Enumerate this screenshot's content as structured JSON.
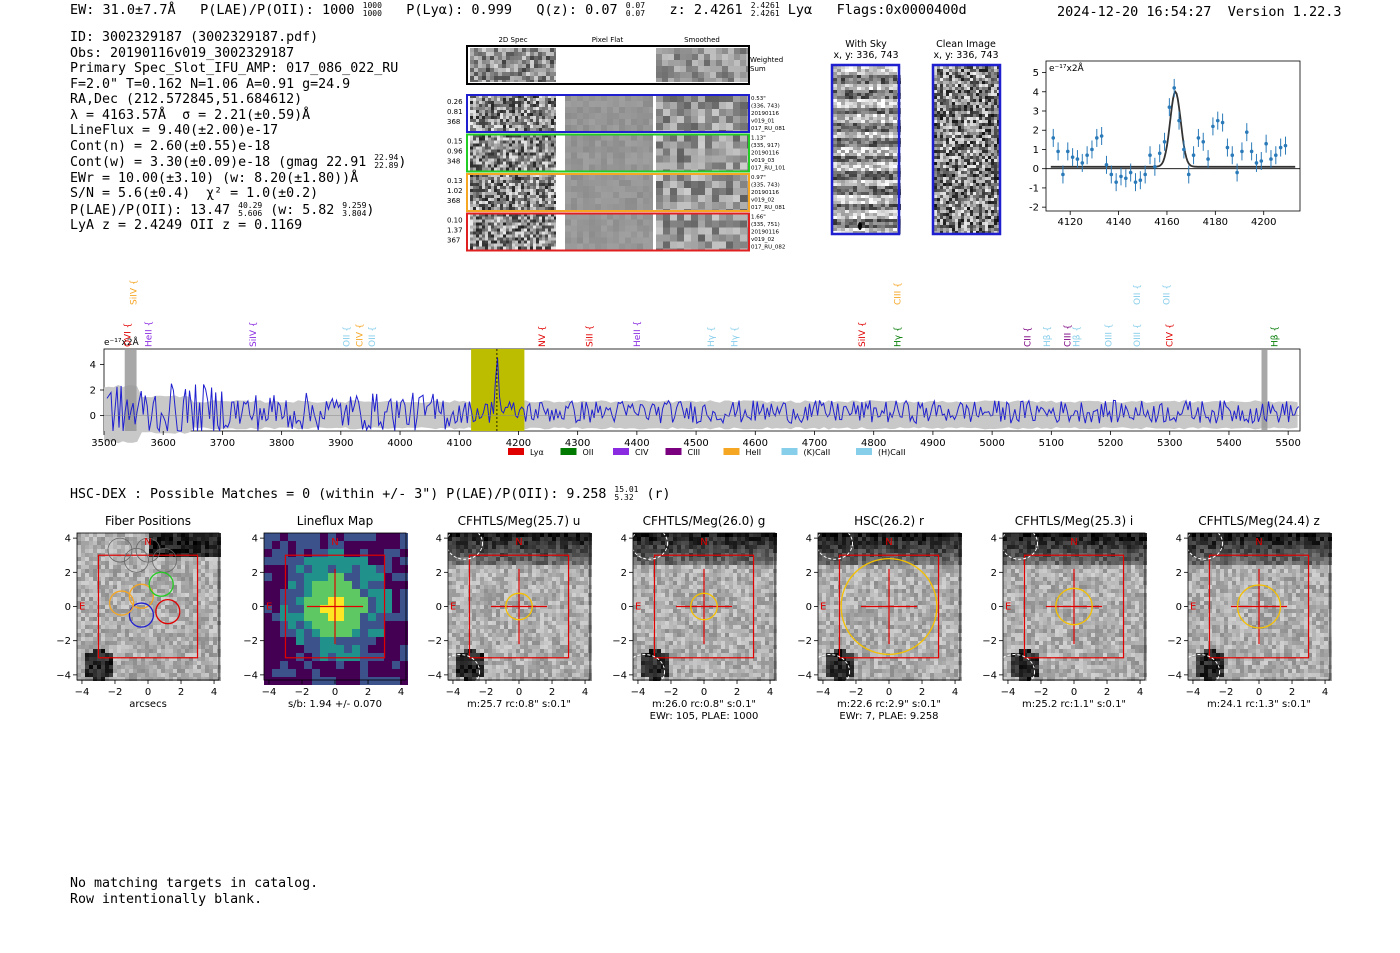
{
  "header": {
    "ew": "EW: 31.0±7.7Å",
    "plae": "P(LAE)/P(OII): 1000",
    "plae_hi": "1000",
    "plae_lo": "1000",
    "plya": "P(Lyα): 0.999",
    "qz": "Q(z): 0.07",
    "qz_hi": "0.07",
    "qz_lo": "0.07",
    "z": "z: 2.4261",
    "z_hi": "2.4261",
    "z_lo": "2.4261",
    "line": "Lyα",
    "flags": "Flags:0x0000400d",
    "timestamp": "2024-12-20 16:54:27",
    "version": "Version 1.22.3"
  },
  "info": {
    "id": "ID: 3002329187 (3002329187.pdf)",
    "obs": "Obs: 20190116v019_3002329187",
    "primary": "Primary Spec_Slot_IFU_AMP: 017_086_022_RU",
    "fiber": "F=2.0\"  T=0.162  N=1.06  A=0.91  g=24.9",
    "radec": "RA,Dec (212.572845,51.684612)",
    "lambda": "λ = 4163.57Å  σ = 2.21(±0.59)Å  χ² = 1.0(±0.2)",
    "lambda_a": "λ = 4163.57Å",
    "lambda_b": "σ = 2.21(±0.59)Å",
    "lineflux": "LineFlux = 9.40(±2.00)e-17",
    "contn": "Cont(n) = 2.60(±0.55)e-18",
    "contw": "Cont(w) = 3.30(±0.09)e-18 (gmag 22.91",
    "contw_hi": "22.94",
    "contw_lo": "22.89",
    "ewr": "EWr = 10.00(±3.10) (w: 8.20(±1.80))Å",
    "sn": "S/N = 5.6(±0.4)",
    "chi2": "χ² = 1.0(±0.2)",
    "plae": "P(LAE)/P(OII): 13.47",
    "plae_hi": "40.29",
    "plae_lo": "5.606",
    "plae_w": "(w: 5.82",
    "plae_w_hi": "9.259",
    "plae_w_lo": "3.804",
    "lya_z": "LyA z = 2.4249   OII z = 0.1169"
  },
  "spec2d": {
    "col_titles": [
      "2D Spec",
      "Pixel Flat",
      "Smoothed"
    ],
    "weighted_sum": [
      "Weighted",
      "Sum"
    ],
    "rows": [
      {
        "left": [
          "0.26",
          "0.81",
          "368"
        ],
        "right": [
          "0.53\"",
          "(336, 743)",
          "20190116",
          "v019_01",
          "017_RU_081"
        ],
        "color": "#1f1fd0"
      },
      {
        "left": [
          "0.15",
          "0.96",
          "348"
        ],
        "right": [
          "1.13\"",
          "(335, 917)",
          "20190116",
          "v019_03",
          "017_RU_101"
        ],
        "color": "#22cc22"
      },
      {
        "left": [
          "0.13",
          "1.02",
          "368"
        ],
        "right": [
          "0.97\"",
          "(335, 743)",
          "20190116",
          "v019_02",
          "017_RU_081"
        ],
        "color": "#f5a623"
      },
      {
        "left": [
          "0.10",
          "1.37",
          "367"
        ],
        "right": [
          "1.66\"",
          "(335, 751)",
          "20190116",
          "v019_02",
          "017_RU_082"
        ],
        "color": "#e02020"
      }
    ]
  },
  "cutouts": {
    "with_sky": [
      "With Sky",
      "x, y: 336, 743"
    ],
    "clean": [
      "Clean Image",
      "x, y: 336, 743"
    ]
  },
  "chart_data": [
    {
      "type": "line",
      "name": "zoom-line-fit",
      "ylabel": "e⁻¹⁷x2Å",
      "xlim": [
        4110,
        4215
      ],
      "ylim": [
        -2.2,
        5.6
      ],
      "xticks": [
        4120,
        4140,
        4160,
        4180,
        4200
      ],
      "yticks": [
        -2,
        -1,
        0,
        1,
        2,
        3,
        4,
        5
      ],
      "points": [
        [
          4113,
          1.6
        ],
        [
          4115,
          0.9
        ],
        [
          4117,
          -0.3
        ],
        [
          4119,
          0.9
        ],
        [
          4121,
          0.6
        ],
        [
          4123,
          0.5
        ],
        [
          4125,
          0.3
        ],
        [
          4127,
          0.7
        ],
        [
          4129,
          1.0
        ],
        [
          4131,
          1.6
        ],
        [
          4133,
          1.7
        ],
        [
          4135,
          0.2
        ],
        [
          4137,
          -0.3
        ],
        [
          4139,
          -0.7
        ],
        [
          4141,
          -0.4
        ],
        [
          4143,
          -0.5
        ],
        [
          4145,
          -0.2
        ],
        [
          4147,
          -0.7
        ],
        [
          4149,
          -0.6
        ],
        [
          4151,
          -0.3
        ],
        [
          4153,
          0.7
        ],
        [
          4155,
          0.1
        ],
        [
          4157,
          0.8
        ],
        [
          4159,
          1.4
        ],
        [
          4161,
          3.2
        ],
        [
          4163,
          4.2
        ],
        [
          4165,
          2.5
        ],
        [
          4167,
          1.0
        ],
        [
          4169,
          -0.3
        ],
        [
          4171,
          0.7
        ],
        [
          4173,
          1.6
        ],
        [
          4175,
          1.4
        ],
        [
          4177,
          0.5
        ],
        [
          4179,
          2.2
        ],
        [
          4181,
          2.5
        ],
        [
          4183,
          2.4
        ],
        [
          4185,
          1.1
        ],
        [
          4187,
          0.7
        ],
        [
          4189,
          -0.2
        ],
        [
          4191,
          0.9
        ],
        [
          4193,
          1.9
        ],
        [
          4195,
          0.9
        ],
        [
          4197,
          0.3
        ],
        [
          4199,
          0.4
        ],
        [
          4201,
          1.3
        ],
        [
          4203,
          0.5
        ],
        [
          4205,
          0.7
        ],
        [
          4207,
          1.1
        ],
        [
          4209,
          1.2
        ]
      ],
      "fit": {
        "amplitude": 3.9,
        "center": 4163.5,
        "sigma": 2.2,
        "offset": 0.1
      }
    },
    {
      "type": "line",
      "name": "full-spectrum",
      "ylabel": "e⁻¹⁷x2Å",
      "xlim": [
        3500,
        5520
      ],
      "ylim": [
        -1.2,
        5.2
      ],
      "xticks": [
        3500,
        3600,
        3700,
        3800,
        3900,
        4000,
        4100,
        4200,
        4300,
        4400,
        4500,
        4600,
        4700,
        4800,
        4900,
        5000,
        5100,
        5200,
        5300,
        5400,
        5500
      ],
      "yticks": [
        0,
        2,
        4
      ],
      "highlight": [
        4120,
        4210
      ],
      "line_center": 4163.6,
      "masked": [
        [
          3535,
          3555
        ],
        [
          5455,
          5465
        ]
      ],
      "legend": [
        {
          "label": "Lyα",
          "color": "#e00000"
        },
        {
          "label": "OII",
          "color": "#007a00"
        },
        {
          "label": "CIV",
          "color": "#8a2be2"
        },
        {
          "label": "CIII",
          "color": "#7a0080"
        },
        {
          "label": "HeII",
          "color": "#f5a623"
        },
        {
          "label": "(K)CaII",
          "color": "#87ceeb"
        },
        {
          "label": "(H)CaII",
          "color": "#87ceeb"
        }
      ],
      "line_labels": [
        {
          "label": "SiIV",
          "x": 3555,
          "row": 0,
          "color": "#f5a623"
        },
        {
          "label": "OVI",
          "x": 3545,
          "row": 1,
          "color": "#e00000"
        },
        {
          "label": "HeII",
          "x": 3580,
          "row": 1,
          "color": "#8a2be2"
        },
        {
          "label": "SiIV",
          "x": 3757,
          "row": 1,
          "color": "#8a2be2"
        },
        {
          "label": "OII",
          "x": 3915,
          "row": 1,
          "color": "#87ceeb"
        },
        {
          "label": "CIV",
          "x": 3937,
          "row": 1,
          "color": "#f5a623"
        },
        {
          "label": "OII",
          "x": 3958,
          "row": 1,
          "color": "#87ceeb"
        },
        {
          "label": "NV",
          "x": 4245,
          "row": 1,
          "color": "#e00000"
        },
        {
          "label": "SiII",
          "x": 4325,
          "row": 1,
          "color": "#e00000"
        },
        {
          "label": "HeII",
          "x": 4405,
          "row": 1,
          "color": "#8a2be2"
        },
        {
          "label": "Hγ",
          "x": 4530,
          "row": 1,
          "color": "#87ceeb"
        },
        {
          "label": "Hγ",
          "x": 4570,
          "row": 1,
          "color": "#87ceeb"
        },
        {
          "label": "SiIV",
          "x": 4785,
          "row": 1,
          "color": "#e00000"
        },
        {
          "label": "CIII",
          "x": 4845,
          "row": 0,
          "color": "#f5a623"
        },
        {
          "label": "Hγ",
          "x": 4845,
          "row": 1,
          "color": "#007a00"
        },
        {
          "label": "CII",
          "x": 5065,
          "row": 1,
          "color": "#7a0080"
        },
        {
          "label": "Hβ",
          "x": 5098,
          "row": 1,
          "color": "#87ceeb"
        },
        {
          "label": "CIII",
          "x": 5132,
          "row": 1,
          "color": "#7a0080"
        },
        {
          "label": "Hβ",
          "x": 5148,
          "row": 1,
          "color": "#87ceeb"
        },
        {
          "label": "OIII",
          "x": 5202,
          "row": 1,
          "color": "#87ceeb"
        },
        {
          "label": "OII",
          "x": 5250,
          "row": 0,
          "color": "#87ceeb"
        },
        {
          "label": "OIII",
          "x": 5250,
          "row": 1,
          "color": "#87ceeb"
        },
        {
          "label": "OII",
          "x": 5300,
          "row": 0,
          "color": "#87ceeb"
        },
        {
          "label": "CIV",
          "x": 5305,
          "row": 1,
          "color": "#e00000"
        },
        {
          "label": "Hβ",
          "x": 5482,
          "row": 1,
          "color": "#007a00"
        }
      ]
    }
  ],
  "hsc_line": {
    "text": "HSC-DEX : Possible Matches = 0 (within +/- 3\")  P(LAE)/P(OII): 9.258",
    "hi": "15.01",
    "lo": "5.32",
    "suffix": "(r)"
  },
  "panels": [
    {
      "title": "Fiber Positions",
      "caption": [
        "arcsecs"
      ],
      "kind": "fiber"
    },
    {
      "title": "Lineflux Map",
      "caption": [
        "s/b: 1.94 +/- 0.070"
      ],
      "kind": "lineflux"
    },
    {
      "title": "CFHTLS/Meg(25.7) u",
      "caption": [
        "m:25.7 rc:0.8\"  s:0.1\""
      ],
      "kind": "img",
      "aperture": 0.8
    },
    {
      "title": "CFHTLS/Meg(26.0) g",
      "caption": [
        "m:26.0 rc:0.8\"  s:0.1\"",
        "EWr: 105, PLAE: 1000"
      ],
      "kind": "img",
      "aperture": 0.8
    },
    {
      "title": "HSC(26.2) r",
      "caption": [
        "m:22.6 rc:2.9\"  s:0.1\"",
        "EWr: 7, PLAE: 9.258"
      ],
      "kind": "img",
      "aperture": 2.9
    },
    {
      "title": "CFHTLS/Meg(25.3) i",
      "caption": [
        "m:25.2 rc:1.1\"  s:0.1\""
      ],
      "kind": "img",
      "aperture": 1.1
    },
    {
      "title": "CFHTLS/Meg(24.4) z",
      "caption": [
        "m:24.1 rc:1.3\"  s:0.1\""
      ],
      "kind": "img",
      "aperture": 1.3
    }
  ],
  "panel_axes": {
    "ticks": [
      -4,
      -2,
      0,
      2,
      4
    ],
    "north": "N",
    "east": "E"
  },
  "bottom_text": [
    "No matching targets in catalog.",
    "Row intentionally blank."
  ]
}
